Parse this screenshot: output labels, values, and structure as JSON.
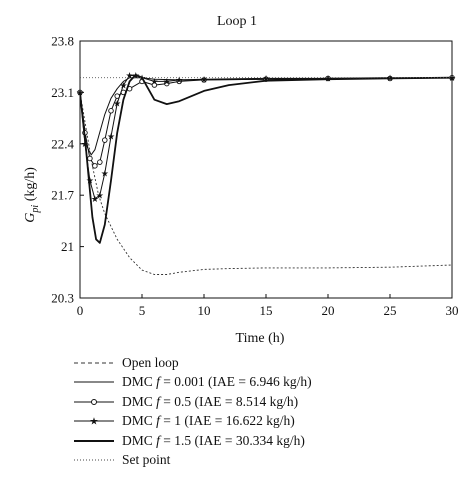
{
  "chart_data": {
    "type": "line",
    "title": "Loop 1",
    "xlabel": "Time (h)",
    "ylabel": "G_pi (kg/h)",
    "ylabel_main": "G",
    "ylabel_sub": "pi",
    "ylabel_unit": "(kg/h)",
    "xlim": [
      0,
      30
    ],
    "ylim": [
      20.3,
      23.8
    ],
    "xticks": [
      0,
      5,
      10,
      15,
      20,
      25,
      30
    ],
    "yticks": [
      20.3,
      21,
      21.7,
      22.4,
      23.1,
      23.8
    ],
    "ytick_labels": [
      "20.3",
      "21",
      "21.7",
      "22.4",
      "23.1",
      "23.8"
    ],
    "grid": false,
    "legend_placement": "below",
    "series": [
      {
        "name": "Open loop",
        "style": "dashed",
        "x": [
          0,
          0.5,
          1,
          1.5,
          2,
          3,
          4,
          5,
          6,
          7,
          8,
          10,
          12,
          15,
          20,
          25,
          30
        ],
        "y": [
          23.1,
          22.6,
          22.1,
          21.7,
          21.45,
          21.1,
          20.85,
          20.68,
          20.62,
          20.62,
          20.65,
          20.69,
          20.7,
          20.71,
          20.71,
          20.72,
          20.75
        ]
      },
      {
        "name": "DMC f = 0.001 (IAE = 6.946 kg/h)",
        "prefix": "DMC ",
        "f": "f",
        "suffix": " = 0.001 (IAE = 6.946 kg/h)",
        "style": "thin",
        "x": [
          0,
          0.3,
          0.6,
          0.9,
          1.2,
          1.5,
          2,
          2.5,
          3,
          3.5,
          4,
          5,
          6,
          8,
          10,
          15,
          20,
          25,
          30
        ],
        "y": [
          23.1,
          22.7,
          22.35,
          22.25,
          22.32,
          22.5,
          22.8,
          23.02,
          23.15,
          23.25,
          23.3,
          23.3,
          23.28,
          23.27,
          23.27,
          23.28,
          23.29,
          23.29,
          23.3
        ]
      },
      {
        "name": "DMC f = 0.5 (IAE = 8.514 kg/h)",
        "prefix": "DMC ",
        "f": "f",
        "suffix": " = 0.5 (IAE = 8.514 kg/h)",
        "style": "circle",
        "x": [
          0,
          0.4,
          0.8,
          1.2,
          1.6,
          2,
          2.5,
          3,
          3.5,
          4,
          5,
          6,
          7,
          8,
          10,
          15,
          20,
          25,
          30
        ],
        "y": [
          23.1,
          22.55,
          22.2,
          22.1,
          22.15,
          22.45,
          22.85,
          23.05,
          23.1,
          23.15,
          23.25,
          23.2,
          23.22,
          23.25,
          23.27,
          23.28,
          23.29,
          23.29,
          23.3
        ]
      },
      {
        "name": "DMC f = 1 (IAE = 16.622 kg/h)",
        "prefix": "DMC ",
        "f": "f",
        "suffix": " = 1 (IAE = 16.622 kg/h)",
        "style": "star",
        "x": [
          0,
          0.4,
          0.8,
          1.2,
          1.6,
          2,
          2.5,
          3,
          3.5,
          4,
          4.5,
          5,
          6,
          7,
          8,
          10,
          15,
          20,
          25,
          30
        ],
        "y": [
          23.1,
          22.4,
          21.9,
          21.65,
          21.7,
          22.0,
          22.5,
          22.95,
          23.2,
          23.33,
          23.33,
          23.3,
          23.25,
          23.25,
          23.27,
          23.28,
          23.29,
          23.29,
          23.3,
          23.3
        ]
      },
      {
        "name": "DMC f = 1.5 (IAE = 30.334 kg/h)",
        "prefix": "DMC ",
        "f": "f",
        "suffix": " = 1.5 (IAE = 30.334 kg/h)",
        "style": "thick",
        "x": [
          0,
          0.5,
          1,
          1.3,
          1.6,
          2,
          2.5,
          3,
          3.5,
          4,
          4.5,
          5,
          5.5,
          6,
          7,
          8,
          9,
          10,
          12,
          15,
          20,
          25,
          30
        ],
        "y": [
          23.1,
          22.3,
          21.4,
          21.1,
          21.05,
          21.3,
          21.9,
          22.55,
          23.0,
          23.25,
          23.34,
          23.3,
          23.15,
          23.0,
          22.94,
          22.98,
          23.05,
          23.12,
          23.2,
          23.26,
          23.28,
          23.29,
          23.3
        ]
      },
      {
        "name": "Set point",
        "style": "dotted",
        "x": [
          0,
          30
        ],
        "y": [
          23.3,
          23.3
        ]
      }
    ]
  }
}
